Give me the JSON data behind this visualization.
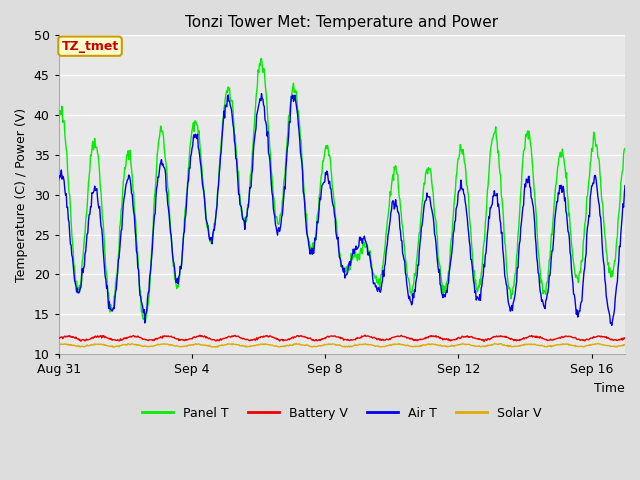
{
  "title": "Tonzi Tower Met: Temperature and Power",
  "xlabel": "Time",
  "ylabel": "Temperature (C) / Power (V)",
  "ylim": [
    10,
    50
  ],
  "xlim_days": 17,
  "plot_bg_color": "#e8e8e8",
  "fig_bg_color": "#dddddd",
  "annotation_text": "TZ_tmet",
  "annotation_bg": "#ffffcc",
  "annotation_border": "#cc9900",
  "annotation_text_color": "#cc0000",
  "legend_entries": [
    "Panel T",
    "Battery V",
    "Air T",
    "Solar V"
  ],
  "legend_colors": [
    "#00ee00",
    "#ee0000",
    "#0000ee",
    "#ddaa00"
  ],
  "x_tick_labels": [
    "Aug 31",
    "Sep 4",
    "Sep 8",
    "Sep 12",
    "Sep 16"
  ],
  "x_tick_positions": [
    0,
    4,
    8,
    12,
    16
  ],
  "y_tick_positions": [
    10,
    15,
    20,
    25,
    30,
    35,
    40,
    45,
    50
  ]
}
